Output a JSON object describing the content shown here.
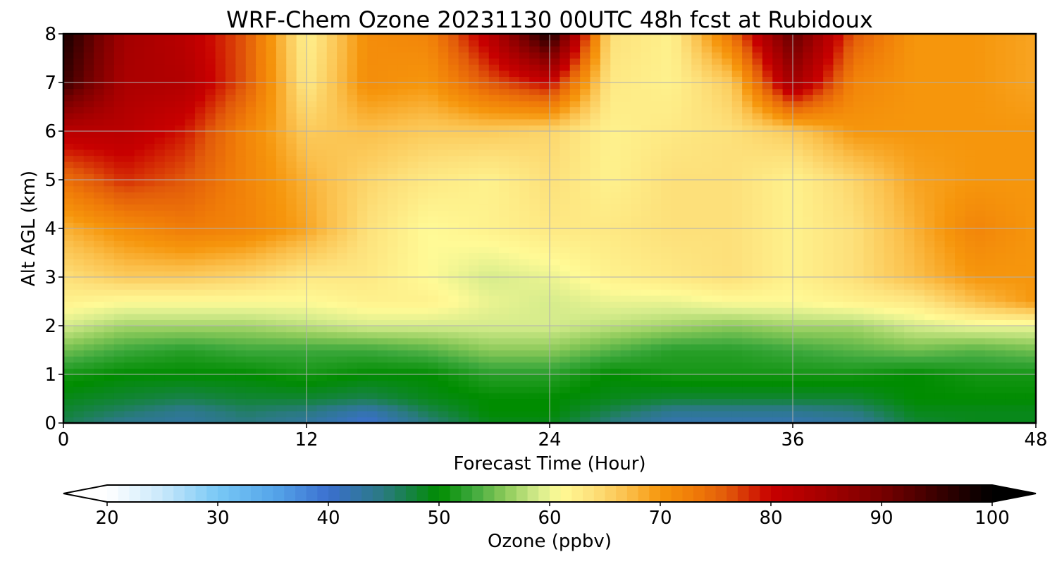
{
  "chart_data": {
    "type": "heatmap",
    "title": "WRF-Chem Ozone  20231130 00UTC 48h fcst at Rubidoux",
    "xlabel": "Forecast Time (Hour)",
    "ylabel": "Alt AGL (km)",
    "xlim": [
      0,
      48
    ],
    "ylim": [
      0,
      8
    ],
    "xticks": [
      0,
      12,
      24,
      36,
      48
    ],
    "yticks": [
      0,
      1,
      2,
      3,
      4,
      5,
      6,
      7,
      8
    ],
    "grid": true,
    "colorbar": {
      "label": "Ozone  (ppbv)",
      "min": 20,
      "max": 100,
      "ticks": [
        20,
        30,
        40,
        50,
        60,
        70,
        80,
        90,
        100
      ],
      "extend": "both",
      "stops": [
        [
          20,
          "#ffffff"
        ],
        [
          25,
          "#c8e8fa"
        ],
        [
          30,
          "#78c8f5"
        ],
        [
          35,
          "#56a6ea"
        ],
        [
          40,
          "#3b6fcf"
        ],
        [
          45,
          "#2a7a80"
        ],
        [
          50,
          "#008c00"
        ],
        [
          53,
          "#3ca83c"
        ],
        [
          56,
          "#8cca5a"
        ],
        [
          59,
          "#d6ec8c"
        ],
        [
          61,
          "#fffa96"
        ],
        [
          64,
          "#fde07a"
        ],
        [
          67,
          "#fbc04c"
        ],
        [
          70,
          "#f6960c"
        ],
        [
          73,
          "#f07c08"
        ],
        [
          76,
          "#e25a0a"
        ],
        [
          80,
          "#c80000"
        ],
        [
          85,
          "#a30000"
        ],
        [
          90,
          "#780000"
        ],
        [
          95,
          "#3a0000"
        ],
        [
          100,
          "#000000"
        ]
      ]
    },
    "x": [
      0,
      3,
      6,
      9,
      12,
      15,
      18,
      21,
      24,
      27,
      30,
      33,
      36,
      39,
      42,
      45,
      48
    ],
    "y": [
      0,
      0.25,
      0.5,
      1,
      1.5,
      2,
      2.5,
      3,
      4,
      5,
      6,
      7,
      8
    ],
    "values": [
      [
        47,
        44,
        43,
        45,
        43,
        40,
        45,
        49,
        49,
        45,
        42,
        42,
        42,
        43,
        48,
        49,
        49
      ],
      [
        48,
        46,
        44,
        46,
        45,
        42,
        47,
        50,
        50,
        47,
        44,
        44,
        44,
        45,
        49,
        49,
        49
      ],
      [
        49,
        48,
        47,
        48,
        48,
        47,
        49,
        50,
        50,
        49,
        48,
        48,
        48,
        48,
        50,
        50,
        50
      ],
      [
        51,
        50,
        50,
        50,
        51,
        50,
        50,
        52,
        52,
        50,
        51,
        51,
        51,
        51,
        50,
        51,
        51
      ],
      [
        55,
        53,
        52,
        53,
        53,
        53,
        54,
        56,
        56,
        54,
        52,
        52,
        53,
        54,
        55,
        54,
        55
      ],
      [
        59,
        57,
        57,
        57,
        58,
        59,
        59,
        59,
        59,
        58,
        57,
        56,
        57,
        57,
        59,
        60,
        60
      ],
      [
        62,
        61,
        61,
        61,
        61,
        62,
        62,
        60,
        59,
        60,
        60,
        61,
        61,
        62,
        63,
        67,
        70
      ],
      [
        64,
        66,
        66,
        65,
        63,
        63,
        61,
        59,
        60,
        62,
        63,
        64,
        62,
        64,
        67,
        70,
        70
      ],
      [
        68,
        71,
        73,
        72,
        69,
        64,
        61,
        62,
        63,
        63,
        64,
        64,
        62,
        64,
        68,
        72,
        70
      ],
      [
        74,
        78,
        76,
        72,
        68,
        65,
        63,
        62,
        64,
        62,
        64,
        64,
        62,
        65,
        69,
        70,
        70
      ],
      [
        82,
        82,
        79,
        72,
        66,
        67,
        66,
        66,
        65,
        62,
        63,
        64,
        66,
        70,
        70,
        70,
        70
      ],
      [
        95,
        84,
        83,
        76,
        63,
        71,
        70,
        76,
        80,
        63,
        62,
        66,
        85,
        72,
        70,
        70,
        69
      ],
      [
        98,
        85,
        82,
        76,
        62,
        71,
        72,
        82,
        98,
        64,
        62,
        74,
        92,
        76,
        70,
        70,
        69
      ]
    ]
  }
}
